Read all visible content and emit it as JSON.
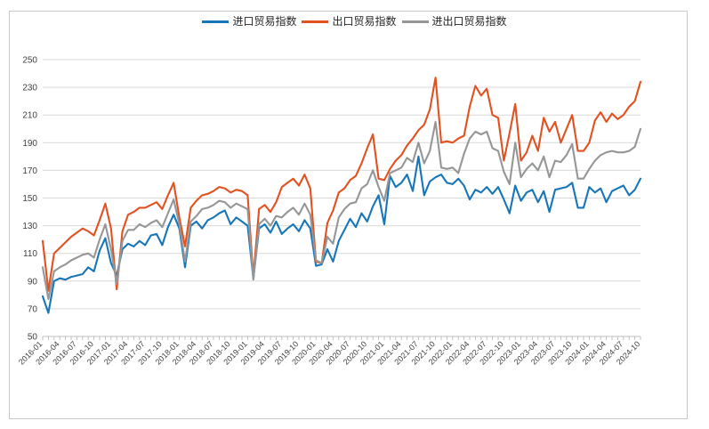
{
  "legend": {
    "items": [
      {
        "label": "进口贸易指数",
        "color": "#1776b8"
      },
      {
        "label": "出口贸易指数",
        "color": "#e2511f"
      },
      {
        "label": "进出口贸易指数",
        "color": "#949698"
      }
    ]
  },
  "chart_data": {
    "type": "line",
    "title": "",
    "xlabel": "",
    "ylabel": "",
    "ylim": [
      50,
      250
    ],
    "yticks": [
      50,
      70,
      90,
      110,
      130,
      150,
      170,
      190,
      210,
      230,
      250
    ],
    "grid": "horizontal",
    "legend_position": "top-center",
    "x_is_monthly": true,
    "x_point_count": 106,
    "x_tick_every_months": 3,
    "categories": [
      "2016-01",
      "2016-04",
      "2016-07",
      "2016-10",
      "2017-01",
      "2017-04",
      "2017-07",
      "2017-10",
      "2018-01",
      "2018-04",
      "2018-07",
      "2018-10",
      "2019-01",
      "2019-04",
      "2019-07",
      "2019-10",
      "2020-01",
      "2020-04",
      "2020-07",
      "2020-10",
      "2021-01",
      "2021-04",
      "2021-07",
      "2021-10",
      "2022-01",
      "2022-04",
      "2022-07",
      "2022-10",
      "2023-01",
      "2023-04",
      "2023-07",
      "2023-10",
      "2024-01",
      "2024-04",
      "2024-07",
      "2024-10"
    ],
    "series": [
      {
        "id": "import",
        "name": "进口贸易指数",
        "color": "#1776b8",
        "values": [
          79,
          67,
          90,
          92,
          91,
          93,
          94,
          95,
          100,
          97,
          112,
          121,
          103,
          94,
          113,
          117,
          115,
          119,
          116,
          123,
          124,
          116,
          129,
          138,
          128,
          100,
          130,
          133,
          128,
          134,
          136,
          139,
          141,
          131,
          136,
          133,
          130,
          92,
          128,
          131,
          125,
          133,
          124,
          128,
          131,
          126,
          134,
          128,
          101,
          102,
          113,
          104,
          119,
          127,
          135,
          129,
          139,
          133,
          144,
          152,
          131,
          166,
          158,
          161,
          167,
          155,
          180,
          152,
          162,
          165,
          167,
          161,
          160,
          164,
          159,
          149,
          156,
          154,
          158,
          153,
          158,
          149,
          139,
          159,
          148,
          154,
          156,
          147,
          155,
          140,
          156,
          157,
          158,
          161,
          143,
          143,
          158,
          154,
          157,
          147,
          155,
          157,
          159,
          152,
          156,
          164
        ]
      },
      {
        "id": "export",
        "name": "出口贸易指数",
        "color": "#e2511f",
        "values": [
          119,
          83,
          110,
          114,
          118,
          122,
          125,
          128,
          126,
          123,
          134,
          146,
          128,
          84,
          126,
          138,
          140,
          143,
          143,
          145,
          147,
          142,
          152,
          161,
          136,
          115,
          143,
          148,
          152,
          153,
          155,
          158,
          157,
          154,
          156,
          155,
          152,
          93,
          142,
          145,
          140,
          147,
          158,
          161,
          164,
          159,
          167,
          157,
          104,
          103,
          132,
          141,
          154,
          157,
          163,
          166,
          175,
          186,
          196,
          164,
          163,
          171,
          177,
          181,
          188,
          193,
          199,
          203,
          214,
          237,
          190,
          191,
          190,
          193,
          195,
          216,
          231,
          224,
          229,
          210,
          208,
          177,
          197,
          218,
          177,
          183,
          195,
          184,
          208,
          198,
          205,
          190,
          200,
          210,
          184,
          184,
          190,
          206,
          212,
          205,
          211,
          207,
          210,
          216,
          220,
          234
        ]
      },
      {
        "id": "combined",
        "name": "进出口贸易指数",
        "color": "#949698",
        "values": [
          100,
          77,
          97,
          100,
          102,
          105,
          107,
          109,
          110,
          107,
          120,
          131,
          113,
          88,
          119,
          127,
          127,
          131,
          129,
          132,
          134,
          129,
          139,
          149,
          131,
          104,
          133,
          137,
          142,
          143,
          145,
          148,
          147,
          143,
          146,
          144,
          142,
          91,
          131,
          135,
          130,
          137,
          136,
          140,
          143,
          138,
          146,
          138,
          105,
          103,
          122,
          117,
          136,
          142,
          146,
          147,
          157,
          160,
          170,
          158,
          148,
          168,
          170,
          172,
          179,
          176,
          190,
          175,
          184,
          205,
          172,
          171,
          172,
          168,
          182,
          193,
          198,
          196,
          198,
          186,
          184,
          169,
          160,
          190,
          165,
          171,
          175,
          170,
          180,
          165,
          177,
          176,
          181,
          189,
          164,
          164,
          171,
          177,
          181,
          183,
          184,
          183,
          183,
          184,
          187,
          200
        ]
      }
    ],
    "colors": {
      "gridline": "#d9d9d9",
      "axis": "#bfbfbf",
      "tick_text": "#404040",
      "frame_border": "#c6c8ca"
    }
  }
}
